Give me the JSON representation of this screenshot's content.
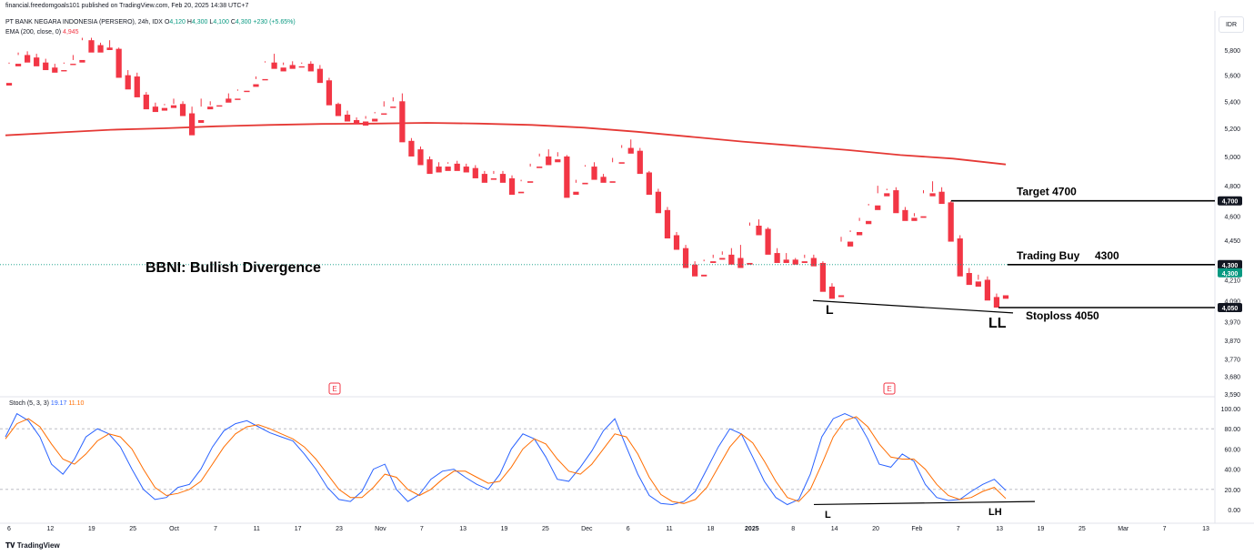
{
  "header": {
    "attribution": "financial.freedomgoals101 published on TradingView.com, Feb 20, 2025 14:38 UTC+7",
    "symbol_line": "PT BANK NEGARA INDONESIA (PERSERO), 24h, IDX",
    "ohlc": {
      "o_label": "O",
      "o": "4,120",
      "h_label": "H",
      "h": "4,300",
      "l_label": "L",
      "l": "4,100",
      "c_label": "C",
      "c": "4,300",
      "change": "+230 (+5.65%)"
    },
    "ema_label": "EMA (200, close, 0)",
    "ema_value": "4,945",
    "currency": "IDR"
  },
  "stoch_header": {
    "label": "Stoch (5, 3, 3)",
    "k": "19.17",
    "d": "11.10"
  },
  "footer": {
    "logo": "TradingView"
  },
  "annotations": {
    "title": "BBNI: Bullish Divergence",
    "target": "Target 4700",
    "trading_buy": "Trading Buy",
    "trading_buy_value": "4300",
    "stoploss": "Stoploss 4050",
    "price_low": "L",
    "price_ll": "LL",
    "stoch_low": "L",
    "stoch_lh": "LH",
    "earnings_marker": "E"
  },
  "colors": {
    "up": "#089981",
    "down": "#f23645",
    "ema": "#e53935",
    "stoch_k": "#2962ff",
    "stoch_d": "#ff6d00",
    "grid": "#e0e3eb",
    "text": "#131722"
  },
  "chart_data": [
    {
      "type": "candlestick",
      "title": "PT BANK NEGARA INDONESIA (PERSERO), 24h, IDX",
      "scale": "log",
      "y_ticks": [
        5800,
        5600,
        5400,
        5200,
        5000,
        4800,
        4600,
        4450,
        4210,
        4090,
        3970,
        3870,
        3770,
        3680,
        3590
      ],
      "y_tick_labels": [
        "5,800",
        "5,600",
        "5,400",
        "5,200",
        "5,000",
        "4,800",
        "4,600",
        "4,450",
        "4,210",
        "4,090",
        "3,970",
        "3,870",
        "3,770",
        "3,680",
        "3,590"
      ],
      "price_tags": [
        {
          "label": "4,700",
          "value": 4700,
          "style": "dark"
        },
        {
          "label": "4,300",
          "value": 4300,
          "style": "dark"
        },
        {
          "label": "4,300",
          "value": 4300,
          "style": "green"
        },
        {
          "label": "4,050",
          "value": 4050,
          "style": "dark"
        }
      ],
      "x_labels": [
        "6",
        "12",
        "19",
        "25",
        "Oct",
        "7",
        "11",
        "17",
        "23",
        "Nov",
        "7",
        "13",
        "19",
        "25",
        "Dec",
        "6",
        "11",
        "18",
        "2025",
        "8",
        "14",
        "20",
        "Feb",
        "7",
        "13",
        "19",
        "25",
        "Mar",
        "7",
        "13"
      ],
      "candles": [
        [
          5540,
          5700,
          5690,
          5520
        ],
        [
          5690,
          5780,
          5760,
          5670
        ],
        [
          5760,
          5790,
          5740,
          5700
        ],
        [
          5740,
          5770,
          5700,
          5670
        ],
        [
          5700,
          5730,
          5660,
          5640
        ],
        [
          5660,
          5690,
          5640,
          5620
        ],
        [
          5640,
          5700,
          5690,
          5630
        ],
        [
          5690,
          5760,
          5720,
          5680
        ],
        [
          5720,
          5900,
          5880,
          5700
        ],
        [
          5880,
          5900,
          5840,
          5780
        ],
        [
          5840,
          5860,
          5820,
          5780
        ],
        [
          5820,
          5880,
          5810,
          5800
        ],
        [
          5810,
          5820,
          5600,
          5580
        ],
        [
          5600,
          5640,
          5590,
          5490
        ],
        [
          5590,
          5620,
          5450,
          5430
        ],
        [
          5450,
          5470,
          5360,
          5340
        ],
        [
          5360,
          5390,
          5350,
          5320
        ],
        [
          5350,
          5380,
          5370,
          5330
        ],
        [
          5370,
          5420,
          5380,
          5350
        ],
        [
          5380,
          5400,
          5310,
          5290
        ],
        [
          5310,
          5360,
          5200,
          5150
        ],
        [
          5260,
          5420,
          5360,
          5240
        ],
        [
          5360,
          5400,
          5370,
          5340
        ],
        [
          5370,
          5420,
          5420,
          5360
        ],
        [
          5420,
          5460,
          5400,
          5390
        ],
        [
          5420,
          5490,
          5480,
          5410
        ],
        [
          5480,
          5530,
          5530,
          5470
        ],
        [
          5530,
          5590,
          5570,
          5510
        ],
        [
          5570,
          5710,
          5700,
          5560
        ],
        [
          5700,
          5770,
          5660,
          5650
        ],
        [
          5660,
          5700,
          5680,
          5630
        ],
        [
          5680,
          5710,
          5670,
          5650
        ],
        [
          5670,
          5700,
          5690,
          5660
        ],
        [
          5690,
          5710,
          5650,
          5630
        ],
        [
          5650,
          5680,
          5560,
          5540
        ],
        [
          5560,
          5580,
          5380,
          5370
        ],
        [
          5380,
          5390,
          5300,
          5290
        ],
        [
          5300,
          5330,
          5260,
          5250
        ],
        [
          5260,
          5280,
          5250,
          5230
        ],
        [
          5250,
          5290,
          5270,
          5220
        ],
        [
          5270,
          5320,
          5310,
          5250
        ],
        [
          5310,
          5400,
          5360,
          5300
        ],
        [
          5360,
          5430,
          5400,
          5350
        ],
        [
          5400,
          5460,
          5110,
          5100
        ],
        [
          5110,
          5130,
          5050,
          5000
        ],
        [
          5050,
          5070,
          4980,
          4940
        ],
        [
          4980,
          5000,
          4930,
          4880
        ],
        [
          4930,
          4960,
          4930,
          4890
        ],
        [
          4930,
          4960,
          4950,
          4900
        ],
        [
          4950,
          4970,
          4930,
          4900
        ],
        [
          4930,
          4950,
          4920,
          4890
        ],
        [
          4920,
          4940,
          4880,
          4850
        ],
        [
          4880,
          4900,
          4850,
          4820
        ],
        [
          4850,
          4900,
          4880,
          4840
        ],
        [
          4880,
          4900,
          4850,
          4820
        ],
        [
          4850,
          4870,
          4760,
          4740
        ],
        [
          4760,
          4840,
          4830,
          4750
        ],
        [
          4830,
          4950,
          4930,
          4820
        ],
        [
          4930,
          5020,
          5000,
          4920
        ],
        [
          5000,
          5050,
          4980,
          4940
        ],
        [
          4980,
          5030,
          5000,
          4960
        ],
        [
          5000,
          5010,
          4740,
          4720
        ],
        [
          4760,
          4840,
          4820,
          4740
        ],
        [
          4820,
          4940,
          4930,
          4810
        ],
        [
          4930,
          4960,
          4860,
          4840
        ],
        [
          4860,
          4880,
          4830,
          4820
        ],
        [
          4830,
          4990,
          4960,
          4820
        ],
        [
          4960,
          5080,
          5060,
          4950
        ],
        [
          5060,
          5120,
          5040,
          5020
        ],
        [
          5040,
          5060,
          4890,
          4880
        ],
        [
          4890,
          4900,
          4760,
          4740
        ],
        [
          4760,
          4780,
          4640,
          4620
        ],
        [
          4640,
          4660,
          4480,
          4460
        ],
        [
          4480,
          4500,
          4400,
          4390
        ],
        [
          4400,
          4420,
          4300,
          4280
        ],
        [
          4300,
          4320,
          4240,
          4230
        ],
        [
          4240,
          4330,
          4320,
          4230
        ],
        [
          4320,
          4360,
          4340,
          4310
        ],
        [
          4340,
          4380,
          4360,
          4330
        ],
        [
          4360,
          4400,
          4340,
          4300
        ],
        [
          4340,
          4420,
          4310,
          4280
        ],
        [
          4310,
          4560,
          4540,
          4300
        ],
        [
          4540,
          4580,
          4520,
          4480
        ],
        [
          4520,
          4530,
          4370,
          4360
        ],
        [
          4370,
          4400,
          4330,
          4310
        ],
        [
          4330,
          4370,
          4330,
          4310
        ],
        [
          4330,
          4340,
          4320,
          4300
        ],
        [
          4320,
          4360,
          4340,
          4310
        ],
        [
          4340,
          4360,
          4310,
          4290
        ],
        [
          4310,
          4320,
          4170,
          4140
        ],
        [
          4170,
          4190,
          4120,
          4100
        ],
        [
          4120,
          4470,
          4440,
          4110
        ],
        [
          4440,
          4510,
          4500,
          4410
        ],
        [
          4500,
          4590,
          4570,
          4480
        ],
        [
          4570,
          4680,
          4670,
          4550
        ],
        [
          4670,
          4800,
          4750,
          4640
        ],
        [
          4750,
          4780,
          4770,
          4730
        ],
        [
          4770,
          4790,
          4640,
          4620
        ],
        [
          4640,
          4660,
          4590,
          4570
        ],
        [
          4590,
          4620,
          4600,
          4570
        ],
        [
          4600,
          4770,
          4750,
          4590
        ],
        [
          4750,
          4830,
          4760,
          4730
        ],
        [
          4760,
          4790,
          4690,
          4680
        ],
        [
          4690,
          4700,
          4460,
          4440
        ],
        [
          4460,
          4480,
          4250,
          4230
        ],
        [
          4250,
          4280,
          4200,
          4180
        ],
        [
          4200,
          4240,
          4210,
          4170
        ],
        [
          4210,
          4230,
          4110,
          4090
        ],
        [
          4110,
          4130,
          4070,
          4050
        ],
        [
          4120,
          4300,
          4300,
          4100
        ]
      ],
      "ema200": [
        5150,
        5170,
        5190,
        5200,
        5215,
        5225,
        5232,
        5235,
        5240,
        5235,
        5225,
        5205,
        5175,
        5140,
        5105,
        5075,
        5045,
        5010,
        4985,
        4945
      ]
    },
    {
      "type": "line",
      "title": "Stoch (5, 3, 3)",
      "y_ticks": [
        100,
        80,
        60,
        40,
        20,
        0
      ],
      "y_tick_labels": [
        "100.00",
        "80.00",
        "60.00",
        "40.00",
        "20.00",
        "0.00"
      ],
      "ylim": [
        -5,
        110
      ],
      "bands": [
        80,
        20
      ],
      "series": [
        {
          "name": "K",
          "values": [
            72,
            95,
            88,
            72,
            45,
            35,
            50,
            72,
            80,
            75,
            62,
            40,
            20,
            10,
            12,
            22,
            25,
            40,
            62,
            78,
            85,
            88,
            82,
            76,
            72,
            68,
            55,
            40,
            22,
            10,
            8,
            18,
            40,
            45,
            20,
            8,
            15,
            30,
            38,
            40,
            32,
            25,
            20,
            35,
            60,
            75,
            70,
            52,
            30,
            28,
            42,
            58,
            78,
            90,
            62,
            35,
            14,
            6,
            5,
            8,
            18,
            40,
            62,
            80,
            75,
            52,
            28,
            12,
            5,
            10,
            35,
            72,
            90,
            95,
            90,
            70,
            45,
            42,
            55,
            48,
            25,
            12,
            9,
            10,
            18,
            25,
            30,
            19
          ]
        },
        {
          "name": "D",
          "values": [
            70,
            85,
            90,
            82,
            65,
            50,
            45,
            55,
            68,
            75,
            72,
            60,
            40,
            22,
            14,
            16,
            20,
            28,
            45,
            62,
            75,
            82,
            84,
            80,
            75,
            70,
            62,
            50,
            35,
            20,
            12,
            12,
            22,
            35,
            32,
            20,
            14,
            20,
            30,
            38,
            38,
            32,
            26,
            28,
            42,
            60,
            70,
            65,
            50,
            38,
            35,
            45,
            60,
            75,
            72,
            55,
            32,
            15,
            8,
            6,
            10,
            22,
            42,
            62,
            75,
            66,
            48,
            28,
            12,
            8,
            20,
            45,
            72,
            88,
            92,
            82,
            65,
            52,
            50,
            50,
            40,
            25,
            14,
            10,
            12,
            18,
            22,
            11
          ]
        }
      ]
    }
  ]
}
